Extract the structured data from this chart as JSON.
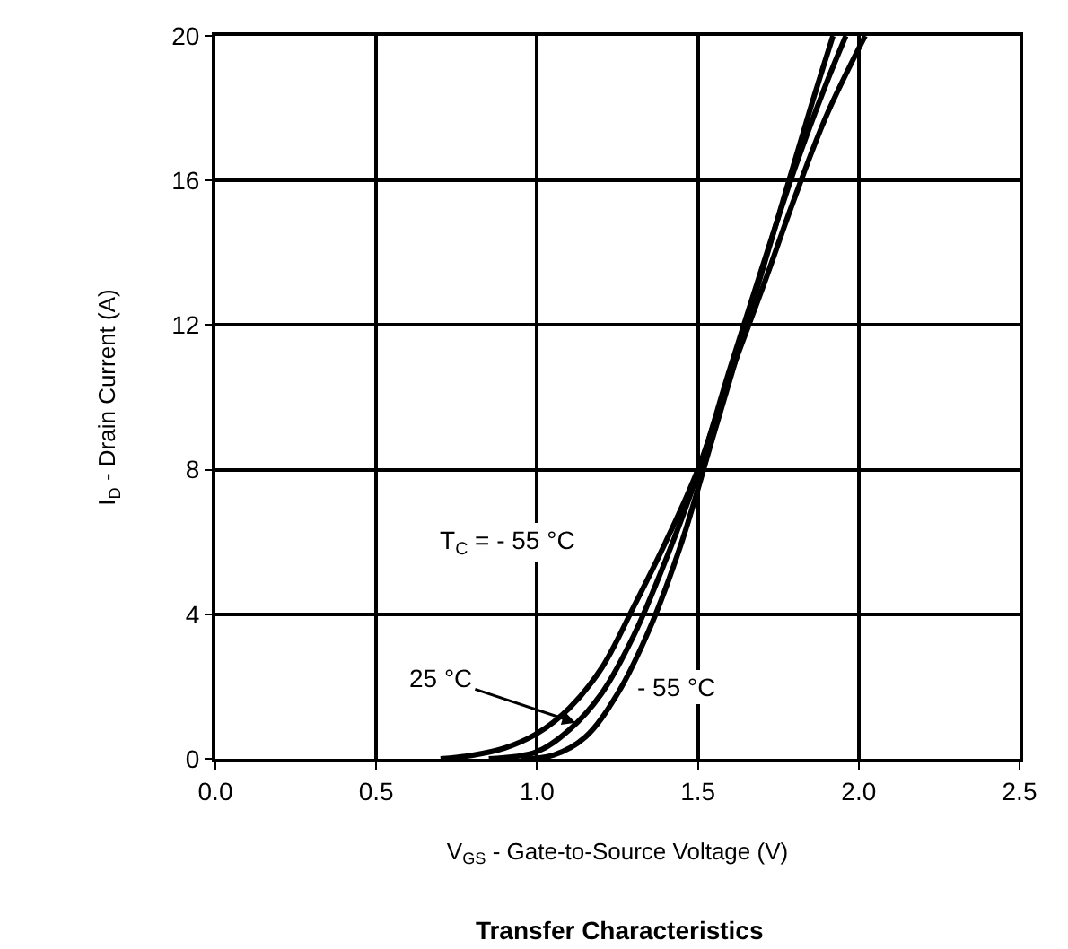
{
  "chart_data": {
    "type": "line",
    "title": "Transfer Characteristics",
    "xlabel": "V$_{GS}$ - Gate-to-Source Voltage (V)",
    "ylabel": "I$_{D}$ - Drain Current (A)",
    "series": [
      {
        "color": "#000000",
        "x": [
          0.7,
          0.8,
          0.9,
          1.0,
          1.1,
          1.2,
          1.3,
          1.4,
          1.5,
          1.6,
          1.7,
          1.8,
          1.9,
          2.02
        ],
        "values": [
          0,
          0.1,
          0.3,
          0.7,
          1.4,
          2.5,
          4.2,
          6.0,
          8.0,
          10.6,
          13.0,
          15.5,
          17.8,
          20
        ]
      },
      {
        "color": "#000000",
        "x": [
          0.85,
          1.0,
          1.1,
          1.2,
          1.3,
          1.4,
          1.5,
          1.6,
          1.7,
          1.8,
          1.9,
          1.96
        ],
        "values": [
          0,
          0.2,
          0.8,
          1.8,
          3.4,
          5.5,
          7.9,
          10.8,
          13.6,
          16.3,
          18.7,
          20
        ]
      },
      {
        "color": "#000000",
        "x": [
          0.95,
          1.05,
          1.15,
          1.25,
          1.35,
          1.45,
          1.55,
          1.65,
          1.75,
          1.85,
          1.92
        ],
        "values": [
          0,
          0.1,
          0.6,
          1.8,
          3.6,
          6.0,
          9.0,
          12.0,
          15.0,
          18.0,
          20
        ]
      }
    ],
    "annotations": [
      "T$_{C}$ = - 55 °C",
      {
        "text": "25 °C",
        "x": 1.12,
        "y": 1.0
      },
      "- 55 °C"
    ],
    "xlim": [
      0,
      2.5
    ],
    "xticks": [
      {
        "value": 0,
        "label": "0.0"
      },
      0.5,
      {
        "value": 1,
        "label": "1.0"
      },
      1.5,
      {
        "value": 2,
        "label": "2.0"
      },
      2.5
    ],
    "ylim": [
      0,
      20
    ],
    "yticks": [
      0,
      4,
      8,
      12,
      16,
      20
    ],
    "grid": true,
    "marker": "none",
    "line_style": "solid"
  }
}
